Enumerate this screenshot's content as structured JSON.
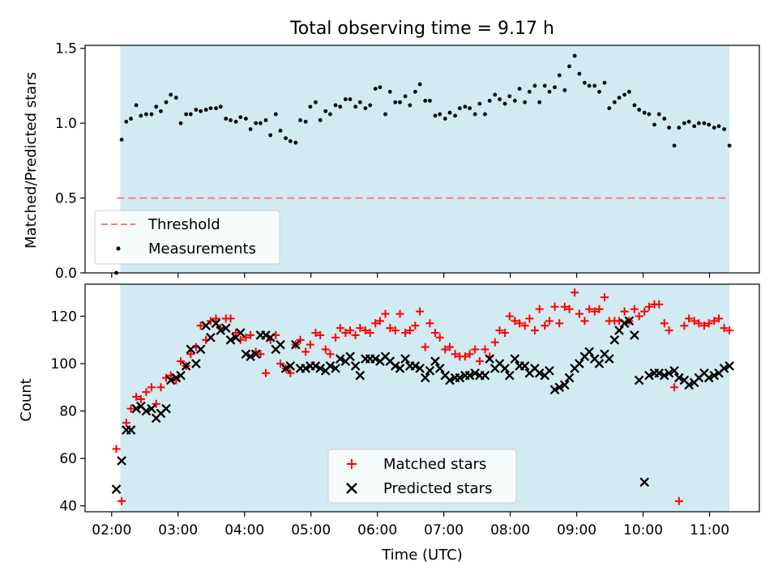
{
  "chart_data": [
    {
      "type": "scatter",
      "title": "Total observing time = 9.17 h",
      "ylabel": "Matched/Predicted stars",
      "xlabel": "",
      "xlim": [
        1.6,
        11.75
      ],
      "ylim": [
        0,
        1.52
      ],
      "yticks": [
        0.0,
        0.5,
        1.0,
        1.5
      ],
      "ytick_labels": [
        "0.0",
        "0.5",
        "1.0",
        "1.5"
      ],
      "shaded_span": [
        2.13,
        11.3
      ],
      "shade_color": "#add8e6",
      "threshold": {
        "name": "Threshold",
        "value": 0.5,
        "x_range": [
          2.08,
          11.3
        ],
        "color": "#f08080"
      },
      "legend": {
        "position": "lower-left",
        "entries": [
          "Threshold",
          "Measurements"
        ]
      },
      "series": [
        {
          "name": "Measurements",
          "marker": "dot",
          "color": "#000000",
          "x": [
            2.07,
            2.15,
            2.22,
            2.29,
            2.37,
            2.44,
            2.52,
            2.6,
            2.67,
            2.74,
            2.82,
            2.89,
            2.97,
            3.04,
            3.12,
            3.19,
            3.27,
            3.34,
            3.42,
            3.49,
            3.57,
            3.64,
            3.72,
            3.79,
            3.87,
            3.94,
            4.02,
            4.09,
            4.17,
            4.24,
            4.32,
            4.39,
            4.47,
            4.54,
            4.62,
            4.69,
            4.77,
            4.84,
            4.92,
            4.99,
            5.07,
            5.14,
            5.22,
            5.29,
            5.37,
            5.44,
            5.52,
            5.59,
            5.67,
            5.74,
            5.82,
            5.89,
            5.97,
            6.04,
            6.12,
            6.19,
            6.27,
            6.34,
            6.42,
            6.49,
            6.57,
            6.64,
            6.72,
            6.79,
            6.87,
            6.94,
            7.02,
            7.09,
            7.17,
            7.24,
            7.32,
            7.39,
            7.47,
            7.54,
            7.62,
            7.69,
            7.77,
            7.84,
            7.92,
            7.99,
            8.07,
            8.14,
            8.22,
            8.29,
            8.37,
            8.44,
            8.52,
            8.59,
            8.67,
            8.74,
            8.82,
            8.89,
            8.97,
            9.04,
            9.12,
            9.19,
            9.27,
            9.34,
            9.42,
            9.49,
            9.57,
            9.64,
            9.72,
            9.79,
            9.87,
            9.94,
            10.02,
            10.09,
            10.17,
            10.24,
            10.32,
            10.39,
            10.47,
            10.54,
            10.62,
            10.69,
            10.77,
            10.84,
            10.92,
            10.99,
            11.07,
            11.14,
            11.22,
            11.3
          ],
          "y": [
            0.0,
            0.89,
            1.01,
            1.03,
            1.12,
            1.05,
            1.06,
            1.06,
            1.11,
            1.08,
            1.14,
            1.19,
            1.17,
            1.0,
            1.06,
            1.06,
            1.09,
            1.08,
            1.09,
            1.1,
            1.1,
            1.11,
            1.03,
            1.02,
            1.01,
            1.04,
            1.03,
            0.96,
            1.0,
            1.0,
            1.02,
            0.92,
            1.06,
            0.95,
            0.9,
            0.88,
            0.87,
            1.02,
            1.01,
            1.11,
            1.14,
            1.02,
            1.08,
            1.06,
            1.12,
            1.11,
            1.16,
            1.16,
            1.11,
            1.14,
            1.1,
            1.12,
            1.23,
            1.24,
            1.06,
            1.21,
            1.14,
            1.14,
            1.18,
            1.12,
            1.21,
            1.26,
            1.15,
            1.15,
            1.05,
            1.06,
            1.03,
            1.07,
            1.05,
            1.1,
            1.11,
            1.1,
            1.06,
            1.13,
            1.06,
            1.15,
            1.19,
            1.16,
            1.13,
            1.18,
            1.15,
            1.23,
            1.14,
            1.21,
            1.25,
            1.14,
            1.25,
            1.21,
            1.24,
            1.32,
            1.22,
            1.38,
            1.45,
            1.33,
            1.27,
            1.25,
            1.25,
            1.21,
            1.27,
            1.1,
            1.14,
            1.17,
            1.19,
            1.21,
            1.12,
            1.09,
            1.07,
            1.06,
            0.99,
            1.06,
            1.03,
            0.97,
            0.85,
            0.97,
            1.0,
            1.01,
            0.98,
            1.0,
            1.0,
            0.99,
            0.97,
            0.98,
            0.96,
            0.85
          ]
        }
      ]
    },
    {
      "type": "scatter",
      "title": "",
      "xlabel": "Time (UTC)",
      "ylabel": "Count",
      "xlim": [
        1.6,
        11.75
      ],
      "ylim": [
        37.5,
        133.5
      ],
      "xticks": [
        2,
        3,
        4,
        5,
        6,
        7,
        8,
        9,
        10,
        11
      ],
      "xtick_labels": [
        "02:00",
        "03:00",
        "04:00",
        "05:00",
        "06:00",
        "07:00",
        "08:00",
        "09:00",
        "10:00",
        "11:00"
      ],
      "yticks": [
        40,
        60,
        80,
        100,
        120
      ],
      "ytick_labels": [
        "40",
        "60",
        "80",
        "100",
        "120"
      ],
      "shaded_span": [
        2.13,
        11.3
      ],
      "shade_color": "#add8e6",
      "legend": {
        "position": "lower-center",
        "entries": [
          "Matched stars",
          "Predicted stars"
        ]
      },
      "series": [
        {
          "name": "Matched stars",
          "marker": "plus",
          "color": "#ff0000",
          "x": [
            2.07,
            2.15,
            2.22,
            2.29,
            2.37,
            2.44,
            2.52,
            2.6,
            2.67,
            2.74,
            2.82,
            2.89,
            2.97,
            3.04,
            3.12,
            3.19,
            3.27,
            3.34,
            3.42,
            3.49,
            3.57,
            3.64,
            3.72,
            3.79,
            3.87,
            3.94,
            4.02,
            4.09,
            4.17,
            4.24,
            4.32,
            4.39,
            4.47,
            4.54,
            4.62,
            4.69,
            4.77,
            4.84,
            4.92,
            4.99,
            5.07,
            5.14,
            5.22,
            5.29,
            5.37,
            5.44,
            5.52,
            5.59,
            5.67,
            5.74,
            5.82,
            5.89,
            5.97,
            6.04,
            6.12,
            6.19,
            6.27,
            6.34,
            6.42,
            6.49,
            6.57,
            6.64,
            6.72,
            6.79,
            6.87,
            6.94,
            7.02,
            7.09,
            7.17,
            7.24,
            7.32,
            7.39,
            7.47,
            7.54,
            7.62,
            7.69,
            7.77,
            7.84,
            7.92,
            7.99,
            8.07,
            8.14,
            8.22,
            8.29,
            8.37,
            8.44,
            8.52,
            8.59,
            8.67,
            8.74,
            8.82,
            8.89,
            8.97,
            9.04,
            9.12,
            9.19,
            9.27,
            9.34,
            9.42,
            9.49,
            9.57,
            9.64,
            9.72,
            9.79,
            9.87,
            9.94,
            10.02,
            10.09,
            10.17,
            10.24,
            10.32,
            10.39,
            10.47,
            10.54,
            10.62,
            10.69,
            10.77,
            10.84,
            10.92,
            10.99,
            11.07,
            11.14,
            11.22,
            11.3
          ],
          "y": [
            64,
            42,
            75,
            81,
            86,
            85,
            88,
            90,
            83,
            90,
            94,
            95,
            93,
            101,
            99,
            104,
            107,
            116,
            110,
            118,
            119,
            115,
            119,
            119,
            113,
            110,
            111,
            112,
            105,
            104,
            96,
            110,
            112,
            100,
            98,
            96,
            108,
            110,
            105,
            108,
            113,
            112,
            106,
            104,
            111,
            115,
            113,
            114,
            112,
            115,
            114,
            113,
            117,
            118,
            121,
            115,
            114,
            121,
            113,
            114,
            116,
            122,
            107,
            117,
            113,
            111,
            106,
            107,
            104,
            103,
            103,
            104,
            106,
            101,
            106,
            103,
            109,
            114,
            113,
            120,
            118,
            117,
            116,
            119,
            114,
            123,
            116,
            118,
            124,
            117,
            124,
            123,
            130,
            121,
            118,
            123,
            122,
            123,
            128,
            118,
            118,
            118,
            122,
            118,
            123,
            120,
            122,
            124,
            125,
            125,
            117,
            114,
            90,
            42,
            116,
            119,
            118,
            117,
            116,
            117,
            118,
            119,
            115,
            114
          ],
          "y_note": ""
        },
        {
          "name": "Predicted stars",
          "marker": "x",
          "color": "#000000",
          "x": [
            2.07,
            2.15,
            2.22,
            2.29,
            2.37,
            2.44,
            2.52,
            2.6,
            2.67,
            2.74,
            2.82,
            2.89,
            2.97,
            3.04,
            3.12,
            3.19,
            3.27,
            3.34,
            3.42,
            3.49,
            3.57,
            3.64,
            3.72,
            3.79,
            3.87,
            3.94,
            4.02,
            4.09,
            4.17,
            4.24,
            4.32,
            4.39,
            4.47,
            4.54,
            4.62,
            4.69,
            4.77,
            4.84,
            4.92,
            4.99,
            5.07,
            5.14,
            5.22,
            5.29,
            5.37,
            5.44,
            5.52,
            5.59,
            5.67,
            5.74,
            5.82,
            5.89,
            5.97,
            6.04,
            6.12,
            6.19,
            6.27,
            6.34,
            6.42,
            6.49,
            6.57,
            6.64,
            6.72,
            6.79,
            6.87,
            6.94,
            7.02,
            7.09,
            7.17,
            7.24,
            7.32,
            7.39,
            7.47,
            7.54,
            7.62,
            7.69,
            7.77,
            7.84,
            7.92,
            7.99,
            8.07,
            8.14,
            8.22,
            8.29,
            8.37,
            8.44,
            8.52,
            8.59,
            8.67,
            8.74,
            8.82,
            8.89,
            8.97,
            9.04,
            9.12,
            9.19,
            9.27,
            9.34,
            9.42,
            9.49,
            9.57,
            9.64,
            9.72,
            9.79,
            9.87,
            9.94,
            10.02,
            10.09,
            10.17,
            10.24,
            10.32,
            10.39,
            10.47,
            10.54,
            10.62,
            10.69,
            10.77,
            10.84,
            10.92,
            10.99,
            11.07,
            11.14,
            11.22,
            11.3
          ],
          "y": [
            47,
            59,
            72,
            72,
            81,
            82,
            80,
            81,
            77,
            79,
            81,
            93,
            94,
            95,
            99,
            106,
            100,
            106,
            116,
            111,
            117,
            114,
            115,
            110,
            111,
            113,
            104,
            103,
            104,
            112,
            112,
            111,
            106,
            108,
            98,
            99,
            108,
            98,
            98,
            99,
            99,
            98,
            97,
            99,
            98,
            102,
            101,
            103,
            99,
            95,
            102,
            102,
            102,
            101,
            103,
            101,
            99,
            98,
            102,
            99,
            99,
            98,
            94,
            97,
            101,
            98,
            95,
            93,
            94,
            94,
            95,
            95,
            96,
            95,
            95,
            102,
            98,
            100,
            98,
            95,
            102,
            99,
            99,
            96,
            98,
            96,
            95,
            97,
            89,
            90,
            91,
            94,
            98,
            100,
            103,
            105,
            102,
            100,
            104,
            102,
            110,
            114,
            117,
            118,
            112,
            93,
            50,
            95,
            96,
            96,
            95,
            96,
            97,
            94,
            93,
            91,
            92,
            94,
            96,
            94,
            95,
            96,
            98,
            99
          ],
          "y_note": ""
        }
      ]
    }
  ]
}
